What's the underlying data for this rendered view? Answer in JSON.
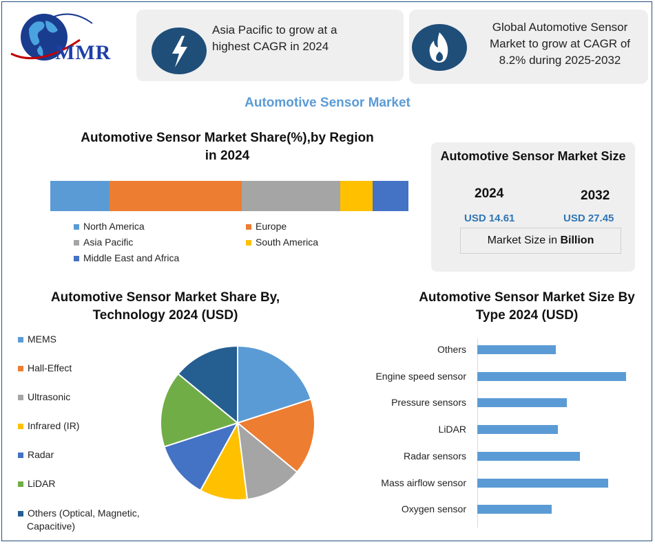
{
  "logo": {
    "text": "MMR"
  },
  "highlights": [
    {
      "icon": "lightning-icon",
      "text_line1": "Asia Pacific to grow at a",
      "text_line2": "highest CAGR in 2024"
    },
    {
      "icon": "flame-icon",
      "text_line1": "Global Automotive Sensor",
      "text_line2": "Market to grow at CAGR of",
      "text_line3": "8.2% during 2025-2032"
    }
  ],
  "main_title": "Automotive Sensor Market",
  "market_size": {
    "title": "Automotive Sensor Market Size",
    "year1": "2024",
    "value1": "USD 14.61",
    "year2": "2032",
    "value2": "USD 27.45",
    "unit_prefix": "Market Size in ",
    "unit_bold": "Billion"
  },
  "colors": {
    "blue": "#5b9bd5",
    "orange": "#ed7d31",
    "gray": "#a5a5a5",
    "yellow": "#ffc000",
    "darkblue": "#4472c4",
    "green": "#70ad47",
    "navy": "#255e91",
    "brand": "#1f4e79"
  },
  "chart_data": [
    {
      "type": "bar",
      "stacked": true,
      "orientation": "horizontal",
      "title_line1": "Automotive Sensor Market Share(%),by Region",
      "title_line2": "in 2024",
      "series": [
        {
          "name": "North America",
          "value": 16.5,
          "color": "#5b9bd5"
        },
        {
          "name": "Europe",
          "value": 36.9,
          "color": "#ed7d31"
        },
        {
          "name": "Asia Pacific",
          "value": 27.5,
          "color": "#a5a5a5"
        },
        {
          "name": "South America",
          "value": 9.1,
          "color": "#ffc000"
        },
        {
          "name": "Middle East and Africa",
          "value": 10.0,
          "color": "#4472c4"
        }
      ],
      "legend": "bottom"
    },
    {
      "type": "pie",
      "title_line1": "Automotive Sensor Market  Share By,",
      "title_line2": "Technology  2024  (USD)",
      "slices": [
        {
          "name": "MEMS",
          "value": 20,
          "color": "#5b9bd5"
        },
        {
          "name": "Hall-Effect",
          "value": 16,
          "color": "#ed7d31"
        },
        {
          "name": "Ultrasonic",
          "value": 12,
          "color": "#a5a5a5"
        },
        {
          "name": "Infrared (IR)",
          "value": 10,
          "color": "#ffc000"
        },
        {
          "name": "Radar",
          "value": 12,
          "color": "#4472c4"
        },
        {
          "name": "LiDAR",
          "value": 16,
          "color": "#70ad47"
        },
        {
          "name": "Others (Optical, Magnetic, Capacitive)",
          "name_line1": "Others (Optical, Magnetic,",
          "name_line2": "Capacitive)",
          "value": 14,
          "color": "#255e91"
        }
      ],
      "legend": "left"
    },
    {
      "type": "bar",
      "orientation": "horizontal",
      "title_line1": "Automotive Sensor Market Size By",
      "title_line2": "Type 2024  (USD)",
      "categories": [
        "Others",
        "Engine speed sensor",
        "Pressure sensors",
        "LiDAR",
        "Radar sensors",
        "Mass airflow sensor",
        "Oxygen sensor"
      ],
      "values": [
        5.3,
        10.0,
        6.0,
        5.4,
        6.9,
        8.8,
        5.0
      ],
      "color": "#5b9bd5",
      "xlim": [
        0,
        10
      ]
    }
  ]
}
